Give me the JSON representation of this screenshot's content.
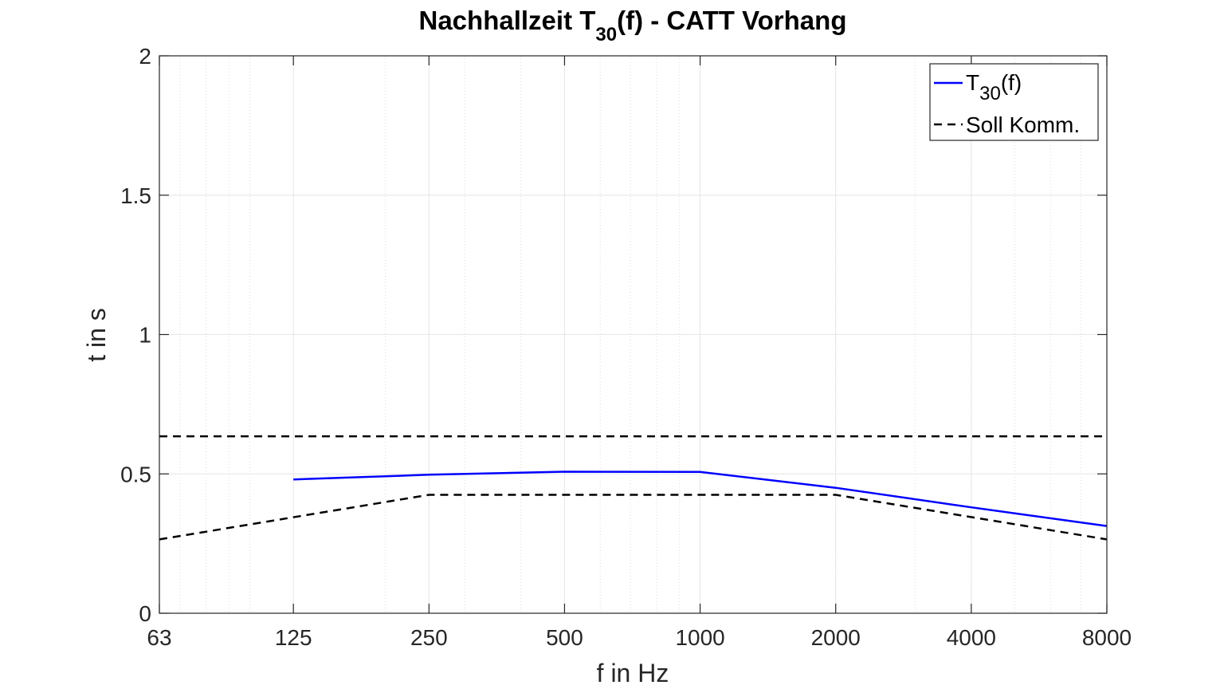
{
  "chart_data": {
    "type": "line",
    "title": {
      "main": "Nachhallzeit T",
      "sub": "30",
      "rest": "(f) - CATT Vorhang"
    },
    "xlabel": "f in Hz",
    "ylabel": "t in s",
    "xscale": "log2",
    "xlim": [
      63,
      8000
    ],
    "ylim": [
      0,
      2
    ],
    "xticks": [
      63,
      125,
      250,
      500,
      1000,
      2000,
      4000,
      8000
    ],
    "xtick_labels": [
      "63",
      "125",
      "250",
      "500",
      "1000",
      "2000",
      "4000",
      "8000"
    ],
    "yticks": [
      0,
      0.5,
      1,
      1.5,
      2
    ],
    "ytick_labels": [
      "0",
      "0.5",
      "1",
      "1.5",
      "2"
    ],
    "grid": true,
    "minor_grid_x": true,
    "legend_position": "top-right",
    "series": [
      {
        "name_main": "T",
        "name_sub": "30",
        "name_rest": "(f)",
        "style": "solid",
        "color": "#0000ff",
        "x": [
          125,
          250,
          500,
          1000,
          2000,
          4000,
          8000
        ],
        "y": [
          0.48,
          0.497,
          0.508,
          0.507,
          0.45,
          0.38,
          0.313
        ]
      },
      {
        "name": "Soll Komm.",
        "style": "dashed",
        "color": "#000000",
        "segments": [
          {
            "x": [
              63,
              8000
            ],
            "y": [
              0.635,
              0.635
            ]
          },
          {
            "x": [
              63,
              250,
              2000,
              8000
            ],
            "y": [
              0.265,
              0.425,
              0.425,
              0.265
            ]
          }
        ]
      }
    ]
  }
}
